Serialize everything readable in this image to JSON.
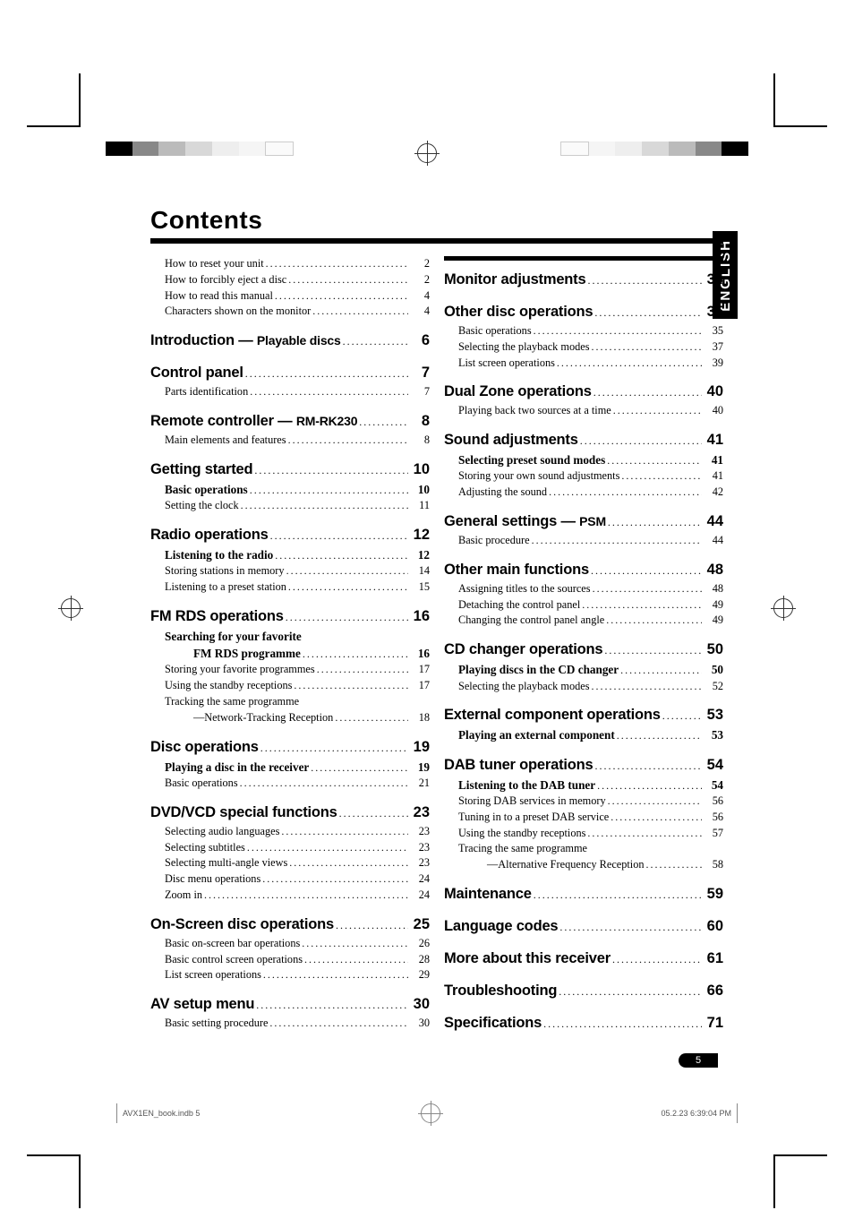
{
  "title": "Contents",
  "side_tab": "ENGLISH",
  "page_number": "5",
  "footer_left": "AVX1EN_book.indb   5",
  "footer_right": "05.2.23   6:39:04 PM",
  "col1": [
    {
      "t": "plain",
      "indent": 1,
      "label": "How to reset your unit",
      "page": "2"
    },
    {
      "t": "plain",
      "indent": 1,
      "label": "How to forcibly eject a disc",
      "page": "2"
    },
    {
      "t": "plain",
      "indent": 1,
      "label": "How to read this manual",
      "page": "4"
    },
    {
      "t": "plain",
      "indent": 1,
      "label": "Characters shown on the monitor",
      "page": "4"
    },
    {
      "t": "h",
      "gap": 1,
      "label": "Introduction — ",
      "sub": "Playable discs",
      "page": "6"
    },
    {
      "t": "h",
      "gap": 1,
      "label": "Control panel ",
      "page": "7"
    },
    {
      "t": "plain",
      "indent": 1,
      "label": "Parts identification",
      "page": "7"
    },
    {
      "t": "h",
      "gap": 1,
      "label": "Remote controller — ",
      "sub": "RM-RK230",
      "page": "8"
    },
    {
      "t": "plain",
      "indent": 1,
      "label": "Main elements and features",
      "page": "8"
    },
    {
      "t": "h",
      "gap": 1,
      "label": "Getting started",
      "page": "10"
    },
    {
      "t": "bold",
      "indent": 1,
      "label": "Basic operations",
      "page": "10"
    },
    {
      "t": "plain",
      "indent": 1,
      "label": "Setting the clock",
      "page": "11"
    },
    {
      "t": "h",
      "gap": 1,
      "label": "Radio operations",
      "page": "12"
    },
    {
      "t": "bold",
      "indent": 1,
      "label": "Listening to the radio",
      "page": "12"
    },
    {
      "t": "plain",
      "indent": 1,
      "label": "Storing stations in memory",
      "page": "14"
    },
    {
      "t": "plain",
      "indent": 1,
      "label": "Listening to a preset station",
      "page": "15"
    },
    {
      "t": "h",
      "gap": 1,
      "label": "FM RDS operations",
      "page": "16"
    },
    {
      "t": "bold",
      "indent": 1,
      "label": "Searching for your favorite",
      "nodots": 1
    },
    {
      "t": "bold",
      "indent": 2,
      "label": "FM RDS programme",
      "page": "16"
    },
    {
      "t": "plain",
      "indent": 1,
      "label": "Storing your favorite programmes",
      "page": "17"
    },
    {
      "t": "plain",
      "indent": 1,
      "label": "Using the standby receptions",
      "page": "17"
    },
    {
      "t": "plain",
      "indent": 1,
      "label": "Tracking the same programme",
      "nodots": 1
    },
    {
      "t": "plain",
      "indent": 2,
      "label": "—Network-Tracking Reception",
      "page": "18"
    },
    {
      "t": "h",
      "gap": 1,
      "label": "Disc operations",
      "page": "19"
    },
    {
      "t": "bold",
      "indent": 1,
      "label": "Playing a disc in the receiver",
      "page": "19"
    },
    {
      "t": "plain",
      "indent": 1,
      "label": "Basic operations",
      "page": "21"
    },
    {
      "t": "h",
      "gap": 1,
      "label": "DVD/VCD special functions",
      "page": "23"
    },
    {
      "t": "plain",
      "indent": 1,
      "label": "Selecting audio languages",
      "page": "23"
    },
    {
      "t": "plain",
      "indent": 1,
      "label": "Selecting subtitles",
      "page": "23"
    },
    {
      "t": "plain",
      "indent": 1,
      "label": "Selecting multi-angle views",
      "page": "23"
    },
    {
      "t": "plain",
      "indent": 1,
      "label": "Disc menu operations",
      "page": "24"
    },
    {
      "t": "plain",
      "indent": 1,
      "label": "Zoom in",
      "page": "24"
    },
    {
      "t": "h",
      "gap": 1,
      "label": "On-Screen disc operations",
      "page": "25"
    },
    {
      "t": "plain",
      "indent": 1,
      "label": "Basic on-screen bar operations",
      "page": "26"
    },
    {
      "t": "plain",
      "indent": 1,
      "label": "Basic control screen operations",
      "page": "28"
    },
    {
      "t": "plain",
      "indent": 1,
      "label": "List screen operations",
      "page": "29"
    },
    {
      "t": "h",
      "gap": 1,
      "label": "AV setup menu",
      "page": "30"
    },
    {
      "t": "plain",
      "indent": 1,
      "label": "Basic setting procedure",
      "page": "30"
    }
  ],
  "col2": [
    {
      "t": "h",
      "label": "Monitor adjustments",
      "page": "34"
    },
    {
      "t": "h",
      "gap": 1,
      "label": "Other disc operations",
      "page": "35"
    },
    {
      "t": "plain",
      "indent": 1,
      "label": "Basic operations",
      "page": "35"
    },
    {
      "t": "plain",
      "indent": 1,
      "label": "Selecting the playback modes",
      "page": "37"
    },
    {
      "t": "plain",
      "indent": 1,
      "label": "List screen operations",
      "page": "39"
    },
    {
      "t": "h",
      "gap": 1,
      "label": "Dual Zone operations",
      "page": "40"
    },
    {
      "t": "plain",
      "indent": 1,
      "label": "Playing back two sources at a time",
      "page": "40"
    },
    {
      "t": "h",
      "gap": 1,
      "label": "Sound adjustments",
      "page": "41"
    },
    {
      "t": "bold",
      "indent": 1,
      "label": "Selecting preset sound modes",
      "page": "41"
    },
    {
      "t": "plain",
      "indent": 1,
      "label": "Storing your own sound adjustments",
      "page": "41"
    },
    {
      "t": "plain",
      "indent": 1,
      "label": "Adjusting the sound",
      "page": "42"
    },
    {
      "t": "h",
      "gap": 1,
      "label": "General settings — ",
      "sub": "PSM",
      "page": "44"
    },
    {
      "t": "plain",
      "indent": 1,
      "label": "Basic procedure",
      "page": "44"
    },
    {
      "t": "h",
      "gap": 1,
      "label": "Other main functions",
      "page": "48"
    },
    {
      "t": "plain",
      "indent": 1,
      "label": "Assigning titles to the sources",
      "page": "48"
    },
    {
      "t": "plain",
      "indent": 1,
      "label": "Detaching the control panel",
      "page": "49"
    },
    {
      "t": "plain",
      "indent": 1,
      "label": "Changing the control panel angle",
      "page": "49"
    },
    {
      "t": "h",
      "gap": 1,
      "label": "CD changer operations",
      "page": "50"
    },
    {
      "t": "bold",
      "indent": 1,
      "label": "Playing discs in the CD changer",
      "page": "50"
    },
    {
      "t": "plain",
      "indent": 1,
      "label": "Selecting the playback modes",
      "page": "52"
    },
    {
      "t": "h",
      "gap": 1,
      "label": "External component operations",
      "page": "53"
    },
    {
      "t": "bold",
      "indent": 1,
      "label": "Playing an external component",
      "page": "53"
    },
    {
      "t": "h",
      "gap": 1,
      "label": "DAB tuner operations",
      "page": "54"
    },
    {
      "t": "bold",
      "indent": 1,
      "label": "Listening to the DAB tuner",
      "page": "54"
    },
    {
      "t": "plain",
      "indent": 1,
      "label": "Storing DAB services in memory",
      "page": "56"
    },
    {
      "t": "plain",
      "indent": 1,
      "label": "Tuning in to a preset DAB service",
      "page": "56"
    },
    {
      "t": "plain",
      "indent": 1,
      "label": "Using the standby receptions",
      "page": "57"
    },
    {
      "t": "plain",
      "indent": 1,
      "label": "Tracing the same programme",
      "nodots": 1
    },
    {
      "t": "plain",
      "indent": 2,
      "label": "—Alternative Frequency Reception",
      "page": "58"
    },
    {
      "t": "h",
      "gap": 1,
      "label": "Maintenance",
      "page": "59"
    },
    {
      "t": "h",
      "gap": 1,
      "label": "Language codes",
      "page": "60"
    },
    {
      "t": "h",
      "gap": 1,
      "label": "More about this receiver",
      "page": "61"
    },
    {
      "t": "h",
      "gap": 1,
      "label": "Troubleshooting",
      "page": "66"
    },
    {
      "t": "h",
      "gap": 1,
      "label": "Specifications",
      "page": "71"
    }
  ]
}
